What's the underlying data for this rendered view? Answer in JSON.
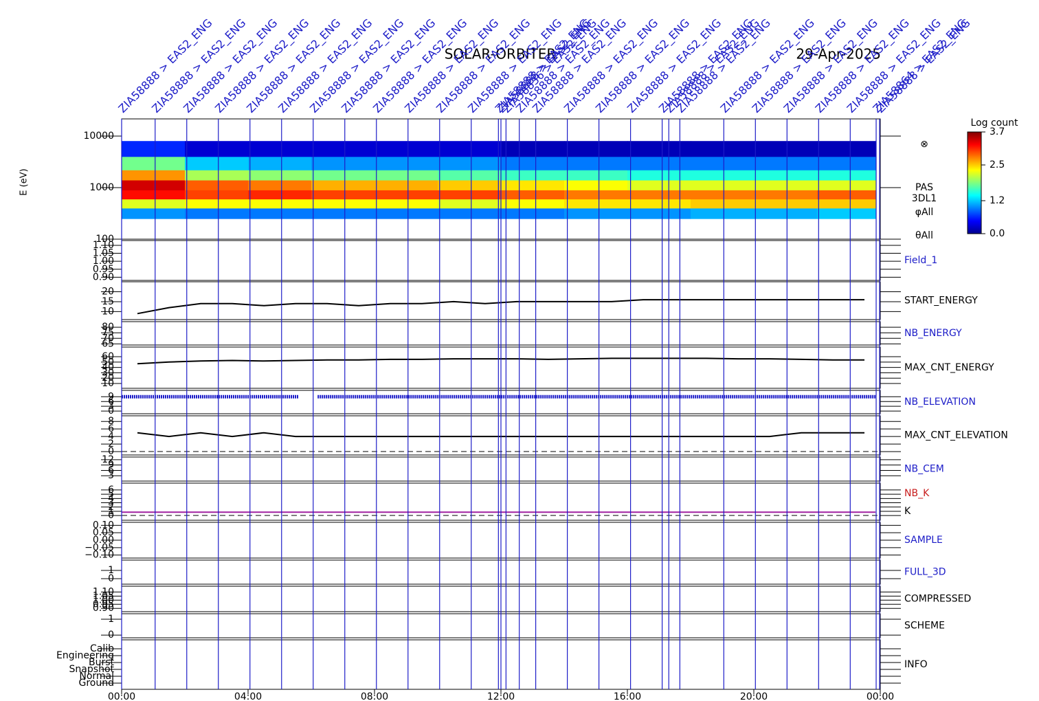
{
  "title": "SOLAR-ORBITER",
  "date": "29-Apr-2025",
  "xaxis": {
    "xlim": [
      0,
      24
    ],
    "xticks": [
      {
        "value": 0,
        "label": "00:00"
      },
      {
        "value": 4,
        "label": "04:00"
      },
      {
        "value": 8,
        "label": "08:00"
      },
      {
        "value": 12,
        "label": "12:00"
      },
      {
        "value": 16,
        "label": "16:00"
      },
      {
        "value": 20,
        "label": "20:00"
      },
      {
        "value": 24,
        "label": "00:00"
      }
    ]
  },
  "annotations": [
    {
      "x": 0,
      "text": "ZIA58888 > EAS2_ENG"
    },
    {
      "x": 1.06,
      "text": "ZIA58888 > EAS2_ENG"
    },
    {
      "x": 2.06,
      "text": "ZIA58888 > EAS2_ENG"
    },
    {
      "x": 3.06,
      "text": "ZIA58888 > EAS2_ENG"
    },
    {
      "x": 4.06,
      "text": "ZIA58888 > EAS2_ENG"
    },
    {
      "x": 5.06,
      "text": "ZIA58888 > EAS2_ENG"
    },
    {
      "x": 6.06,
      "text": "ZIA58888 > EAS2_ENG"
    },
    {
      "x": 7.06,
      "text": "ZIA58888 > EAS2_ENG"
    },
    {
      "x": 8.06,
      "text": "ZIA58888 > EAS2_ENG"
    },
    {
      "x": 9.06,
      "text": "ZIA58888 > EAS2_ENG"
    },
    {
      "x": 10.06,
      "text": "ZIA58888 > EAS2_ENG"
    },
    {
      "x": 11.06,
      "text": "ZIA58888 > EAS2_ENG"
    },
    {
      "x": 11.92,
      "text": "ZIA58888 > EAS2_ENG"
    },
    {
      "x": 12.0,
      "text": "ZIA58888 > EAS2_ENG"
    },
    {
      "x": 12.16,
      "text": "ZIA58836 > EAS2_ENG"
    },
    {
      "x": 12.58,
      "text": "ZIA58888 > EAS2_ENG"
    },
    {
      "x": 13.1,
      "text": "ZIA58888 > EAS2_ENG"
    },
    {
      "x": 14.1,
      "text": "ZIA58888 > EAS2_ENG"
    },
    {
      "x": 15.1,
      "text": "ZIA58888 > EAS2_ENG"
    },
    {
      "x": 16.1,
      "text": "ZIA58888 > EAS2_ENG"
    },
    {
      "x": 17.1,
      "text": "ZIA58888 > EAS2_ENG"
    },
    {
      "x": 17.31,
      "text": "ZIA58888 > EAS2_ENG"
    },
    {
      "x": 17.66,
      "text": "ZIA58888 > EAS2_ENG"
    },
    {
      "x": 19.05,
      "text": "ZIA58888 > EAS2_ENG"
    },
    {
      "x": 20.05,
      "text": "ZIA58888 > EAS2_ENG"
    },
    {
      "x": 21.05,
      "text": "ZIA58888 > EAS2_ENG"
    },
    {
      "x": 22.05,
      "text": "ZIA58888 > EAS2_ENG"
    },
    {
      "x": 23.05,
      "text": "ZIA58888 > EAS2_ENG"
    },
    {
      "x": 23.87,
      "text": "ZIA58864 > EAS2_ENG"
    },
    {
      "x": 23.98,
      "text": "ZIA58888 > EAS2_ENG"
    }
  ],
  "chart_data": [
    {
      "type": "heatmap",
      "ylabel": "E (eV)",
      "log_y": true,
      "ylim": [
        100,
        21500
      ],
      "yticks": [
        100,
        1000,
        10000
      ],
      "x_edges": [
        0,
        2,
        4,
        6,
        8,
        10,
        12,
        14,
        16,
        18,
        20,
        22,
        23.85
      ],
      "y_edges": [
        250,
        400,
        600,
        900,
        1400,
        2200,
        4000,
        8000
      ],
      "z": [
        [
          1.0,
          0.9,
          0.9,
          0.9,
          0.9,
          0.9,
          0.9,
          1.0,
          1.0,
          1.1,
          1.1,
          1.2
        ],
        [
          2.2,
          2.3,
          2.3,
          2.3,
          2.3,
          2.2,
          2.3,
          2.4,
          2.4,
          2.5,
          2.5,
          2.5
        ],
        [
          3.2,
          3.0,
          3.1,
          3.0,
          3.0,
          3.0,
          2.9,
          2.8,
          2.8,
          2.8,
          2.8,
          2.9
        ],
        [
          3.4,
          2.9,
          2.8,
          2.6,
          2.6,
          2.5,
          2.4,
          2.3,
          2.2,
          2.2,
          2.2,
          2.2
        ],
        [
          2.7,
          2.0,
          1.9,
          1.8,
          1.8,
          1.7,
          1.6,
          1.6,
          1.5,
          1.5,
          1.5,
          1.5
        ],
        [
          1.8,
          1.2,
          1.1,
          1.0,
          1.0,
          1.0,
          0.9,
          0.9,
          0.9,
          0.9,
          0.9,
          0.9
        ],
        [
          0.6,
          0.3,
          0.3,
          0.3,
          0.3,
          0.3,
          0.2,
          0.2,
          0.2,
          0.2,
          0.2,
          0.2
        ]
      ],
      "colorbar": {
        "title": "Log count",
        "clim": [
          0,
          3.7
        ],
        "ticks": [
          {
            "value": 0,
            "label": "0.0"
          },
          1.2,
          2.5,
          3.7
        ]
      },
      "side_labels": [
        "⊗",
        "PAS",
        "3DL1",
        "φAll",
        "θAll"
      ]
    },
    {
      "type": "line",
      "labels": [
        {
          "text": "Field_1",
          "color": "#1c1cc8"
        }
      ],
      "ylim": [
        0.88,
        1.13
      ],
      "yticks": [
        {
          "value": 0.9,
          "label": "0.90"
        },
        {
          "value": 0.95,
          "label": "0.95"
        },
        {
          "value": 1,
          "label": "1.00"
        },
        {
          "value": 1.05,
          "label": "1.05"
        },
        {
          "value": 1.1,
          "label": "1.10"
        }
      ]
    },
    {
      "type": "line",
      "labels": [
        {
          "text": "START_ENERGY",
          "color": "#000000"
        }
      ],
      "ylim": [
        6,
        25
      ],
      "yticks": [
        10,
        15,
        20
      ],
      "series": [
        {
          "color": "#000000",
          "x": [
            0.5,
            1.5,
            2.5,
            3.5,
            4.5,
            5.5,
            6.5,
            7.5,
            8.5,
            9.5,
            10.5,
            11.5,
            12.5,
            13.5,
            14.5,
            15.5,
            16.5,
            17.5,
            18.5,
            19.5,
            20.5,
            21.5,
            22.5,
            23.5
          ],
          "values": [
            9,
            12,
            14,
            14,
            13,
            14,
            14,
            13,
            14,
            14,
            15,
            14,
            15,
            15,
            15,
            15,
            16,
            16,
            16,
            16,
            16,
            16,
            16,
            16
          ]
        }
      ]
    },
    {
      "type": "line",
      "labels": [
        {
          "text": "NB_ENERGY",
          "color": "#1c1cc8"
        }
      ],
      "ylim": [
        64,
        85
      ],
      "yticks": [
        65,
        70,
        75,
        80
      ]
    },
    {
      "type": "line",
      "labels": [
        {
          "text": "MAX_CNT_ENERGY",
          "color": "#000000"
        }
      ],
      "ylim": [
        1,
        78
      ],
      "yticks": [
        10,
        20,
        30,
        40,
        50,
        60
      ],
      "series": [
        {
          "color": "#000000",
          "x": [
            0.5,
            1.5,
            2.5,
            3.5,
            4.5,
            5.5,
            6.5,
            7.5,
            8.5,
            9.5,
            10.5,
            11.5,
            12.5,
            13.5,
            14.5,
            15.5,
            16.5,
            17.5,
            18.5,
            19.5,
            20.5,
            21.5,
            22.5,
            23.5
          ],
          "values": [
            47,
            50,
            52,
            53,
            52,
            53,
            54,
            54,
            55,
            55,
            56,
            56,
            56,
            55,
            56,
            57,
            57,
            57,
            57,
            56,
            56,
            55,
            54,
            54
          ]
        }
      ]
    },
    {
      "type": "line",
      "labels": [
        {
          "text": "NB_ELEVATION",
          "color": "#1c1cc8"
        }
      ],
      "ylim": [
        -1.7,
        13
      ],
      "yticks": [
        0,
        3,
        6,
        9
      ],
      "series": [
        {
          "color": "#1c1cc8",
          "dotted": true,
          "x": [
            0,
            5.6,
            5.9,
            6.2,
            23.85
          ],
          "values": [
            9,
            9,
            null,
            9,
            9
          ]
        }
      ]
    },
    {
      "type": "line",
      "labels": [
        {
          "text": "MAX_CNT_ELEVATION",
          "color": "#000000"
        }
      ],
      "ylim": [
        -0.9,
        9.5
      ],
      "yticks": [
        0,
        2,
        4,
        6,
        8
      ],
      "series": [
        {
          "color": "#000000",
          "x": [
            0.5,
            1.5,
            2.5,
            3.5,
            4.5,
            5.5,
            6.5,
            7.5,
            8.5,
            9.5,
            10.5,
            11.5,
            12.5,
            13.5,
            14.5,
            15.5,
            16.5,
            17.5,
            18.5,
            19.5,
            20.5,
            21.5,
            22.5,
            23.5
          ],
          "values": [
            5,
            4,
            5,
            4,
            5,
            4,
            4,
            4,
            4,
            4,
            4,
            4,
            4,
            4,
            4,
            4,
            4,
            4,
            4,
            4,
            4,
            5,
            5,
            5
          ]
        }
      ]
    },
    {
      "type": "line",
      "labels": [
        {
          "text": "NB_CEM",
          "color": "#1c1cc8"
        }
      ],
      "ylim": [
        0,
        13.5
      ],
      "yticks": [
        3,
        6,
        9,
        12
      ]
    },
    {
      "type": "line",
      "labels": [
        {
          "text": "NB_K",
          "color": "#c81c1c"
        },
        {
          "text": "K",
          "color": "#000000"
        }
      ],
      "ylim": [
        -1.1,
        7.6
      ],
      "yticks": [
        0,
        1,
        2,
        3,
        4,
        5,
        6
      ],
      "series": [
        {
          "color": "#a020a0",
          "x": [
            0,
            23.85
          ],
          "values": [
            0.8,
            0.8
          ]
        }
      ]
    },
    {
      "type": "line",
      "labels": [
        {
          "text": "SAMPLE",
          "color": "#1c1cc8"
        }
      ],
      "ylim": [
        -0.12,
        0.12
      ],
      "yticks": [
        {
          "value": -0.1,
          "label": "−0.10"
        },
        {
          "value": -0.05,
          "label": "−0.05"
        },
        {
          "value": 0,
          "label": "0.00"
        },
        {
          "value": 0.05,
          "label": "0.05"
        },
        {
          "value": 0.1,
          "label": "0.10"
        }
      ]
    },
    {
      "type": "line",
      "labels": [
        {
          "text": "FULL_3D",
          "color": "#1c1cc8"
        }
      ],
      "ylim": [
        -0.67,
        2.25
      ],
      "yticks": [
        0,
        1
      ]
    },
    {
      "type": "line",
      "labels": [
        {
          "text": "COMPRESSED",
          "color": "#000000"
        }
      ],
      "ylim": [
        0.86,
        1.17
      ],
      "yticks": [
        {
          "value": 0.9,
          "label": "0.90"
        },
        {
          "value": 0.95,
          "label": "0.95"
        },
        {
          "value": 1,
          "label": "1.00"
        },
        {
          "value": 1.05,
          "label": "1.05"
        },
        {
          "value": 1.1,
          "label": "1.10"
        }
      ]
    },
    {
      "type": "line",
      "labels": [
        {
          "text": "SCHEME",
          "color": "#000000"
        }
      ],
      "ylim": [
        -0.17,
        1.35
      ],
      "yticks": [
        0,
        1
      ]
    },
    {
      "type": "line",
      "labels": [
        {
          "text": "INFO",
          "color": "#000000"
        }
      ],
      "ylim": [
        -0.9,
        6.3
      ],
      "yticks": [
        {
          "value": 0,
          "label": "Ground"
        },
        {
          "value": 1,
          "label": "Normal"
        },
        {
          "value": 2,
          "label": "Snapshot"
        },
        {
          "value": 3,
          "label": "Burst"
        },
        {
          "value": 4,
          "label": "Engineering"
        },
        {
          "value": 5,
          "label": "Calib"
        }
      ]
    }
  ]
}
